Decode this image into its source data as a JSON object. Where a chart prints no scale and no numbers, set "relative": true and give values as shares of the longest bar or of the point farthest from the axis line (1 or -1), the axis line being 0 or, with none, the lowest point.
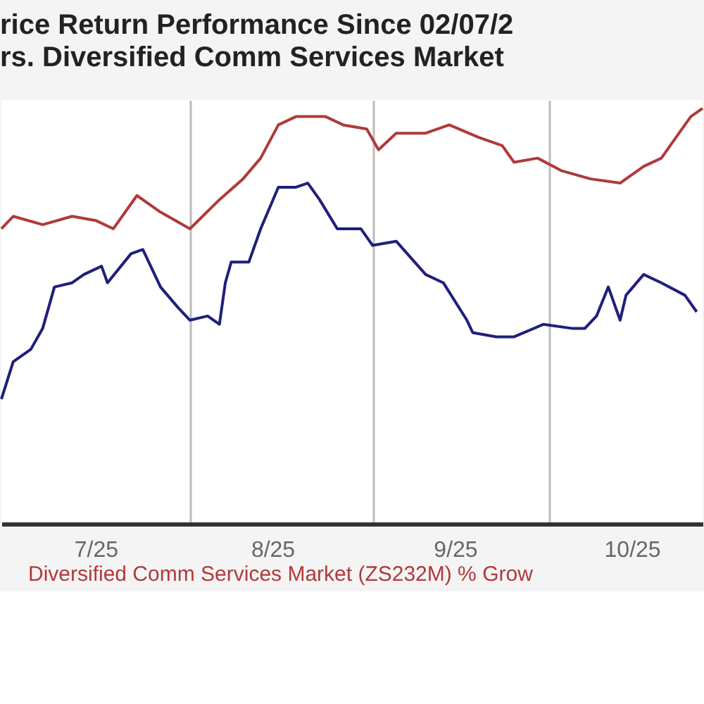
{
  "chart_data": {
    "type": "line",
    "title": "rice Return Performance Since 02/07/2",
    "subtitle": "rs.  Diversified Comm Services Market",
    "relative": true,
    "grid": "x",
    "legend": "bottom",
    "xlim": [
      "2025-06-30",
      "2025-10-27"
    ],
    "xticks": [
      {
        "value": "2025-07-16",
        "label": "7/25"
      },
      {
        "value": "2025-08-01",
        "label": null
      },
      {
        "value": "2025-08-15",
        "label": "8/25"
      },
      {
        "value": "2025-09-01",
        "label": null
      },
      {
        "value": "2025-09-15",
        "label": "9/25"
      },
      {
        "value": "2025-10-01",
        "label": null
      },
      {
        "value": "2025-10-15",
        "label": "10/25"
      }
    ],
    "series": [
      {
        "name": "Diversified Comm Services Market (ZS232M) % Grow",
        "color": "#b03a3a",
        "x": [
          "2025-06-30",
          "2025-07-02",
          "2025-07-07",
          "2025-07-12",
          "2025-07-16",
          "2025-07-19",
          "2025-07-23",
          "2025-07-27",
          "2025-08-01",
          "2025-08-06",
          "2025-08-10",
          "2025-08-13",
          "2025-08-16",
          "2025-08-19",
          "2025-08-24",
          "2025-08-27",
          "2025-08-31",
          "2025-09-02",
          "2025-09-05",
          "2025-09-10",
          "2025-09-14",
          "2025-09-19",
          "2025-09-23",
          "2025-09-25",
          "2025-09-29",
          "2025-10-03",
          "2025-10-08",
          "2025-10-13",
          "2025-10-17",
          "2025-10-20",
          "2025-10-23",
          "2025-10-25",
          "2025-10-27"
        ],
        "values": [
          0.71,
          0.74,
          0.72,
          0.74,
          0.73,
          0.71,
          0.79,
          0.75,
          0.71,
          0.78,
          0.83,
          0.88,
          0.96,
          0.98,
          0.98,
          0.96,
          0.95,
          0.9,
          0.94,
          0.94,
          0.96,
          0.93,
          0.91,
          0.87,
          0.88,
          0.85,
          0.83,
          0.82,
          0.86,
          0.88,
          0.94,
          0.98,
          1
        ]
      },
      {
        "color": "#1f1f7a",
        "x": [
          "2025-06-30",
          "2025-07-02",
          "2025-07-05",
          "2025-07-07",
          "2025-07-09",
          "2025-07-12",
          "2025-07-14",
          "2025-07-17",
          "2025-07-18",
          "2025-07-22",
          "2025-07-24",
          "2025-07-27",
          "2025-07-30",
          "2025-08-01",
          "2025-08-04",
          "2025-08-06",
          "2025-08-07",
          "2025-08-08",
          "2025-08-11",
          "2025-08-13",
          "2025-08-16",
          "2025-08-19",
          "2025-08-21",
          "2025-08-23",
          "2025-08-26",
          "2025-08-30",
          "2025-09-01",
          "2025-09-05",
          "2025-09-10",
          "2025-09-13",
          "2025-09-17",
          "2025-09-18",
          "2025-09-22",
          "2025-09-25",
          "2025-09-30",
          "2025-10-05",
          "2025-10-07",
          "2025-10-09",
          "2025-10-11",
          "2025-10-13",
          "2025-10-14",
          "2025-10-17",
          "2025-10-20",
          "2025-10-24",
          "2025-10-26"
        ],
        "values": [
          0.3,
          0.39,
          0.42,
          0.47,
          0.57,
          0.58,
          0.6,
          0.62,
          0.58,
          0.65,
          0.66,
          0.57,
          0.52,
          0.49,
          0.5,
          0.48,
          0.58,
          0.63,
          0.63,
          0.71,
          0.81,
          0.81,
          0.82,
          0.78,
          0.71,
          0.71,
          0.67,
          0.68,
          0.6,
          0.58,
          0.49,
          0.46,
          0.45,
          0.45,
          0.48,
          0.47,
          0.47,
          0.5,
          0.57,
          0.49,
          0.55,
          0.6,
          0.58,
          0.55,
          0.51
        ]
      }
    ]
  }
}
